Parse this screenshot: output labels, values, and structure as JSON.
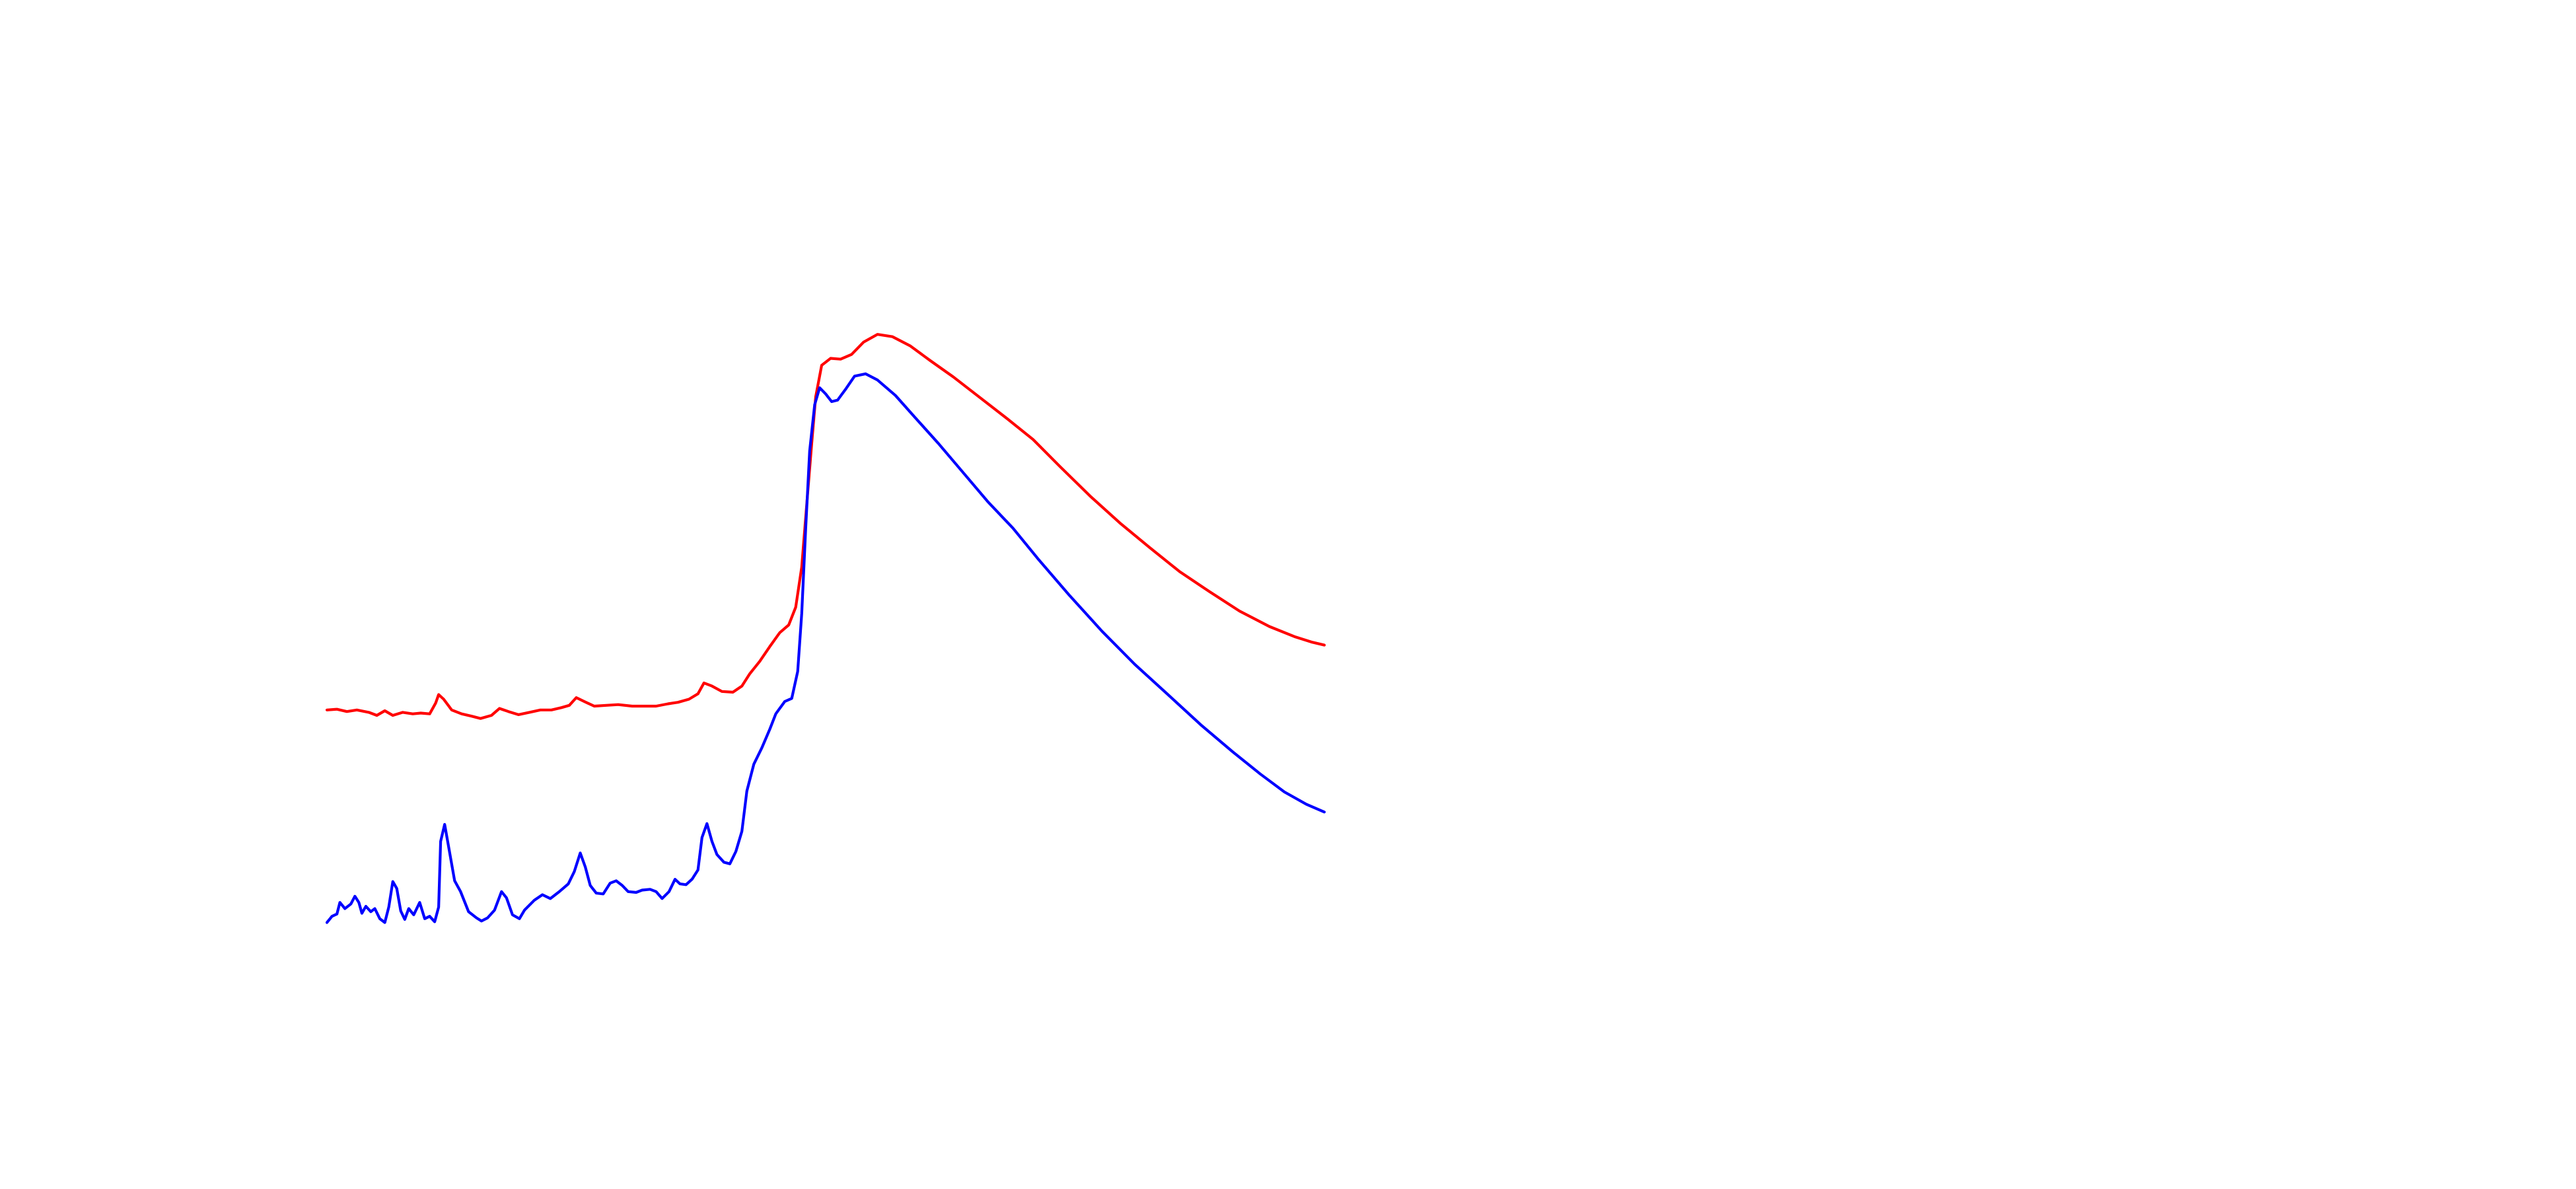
{
  "chart_data": {
    "type": "line",
    "title": "",
    "xlabel": "",
    "ylabel": "",
    "axes_visible": false,
    "grid": false,
    "legend": "none",
    "xlim": [
      0,
      100
    ],
    "ylim": [
      0,
      1
    ],
    "series": [
      {
        "color": "#ff0000",
        "points": [
          [
            0.0,
            0.295
          ],
          [
            1.0,
            0.296
          ],
          [
            2.0,
            0.293
          ],
          [
            3.0,
            0.295
          ],
          [
            4.2,
            0.292
          ],
          [
            5.0,
            0.288
          ],
          [
            5.8,
            0.294
          ],
          [
            6.6,
            0.288
          ],
          [
            7.6,
            0.292
          ],
          [
            8.6,
            0.29
          ],
          [
            9.4,
            0.291
          ],
          [
            10.3,
            0.29
          ],
          [
            10.9,
            0.304
          ],
          [
            11.2,
            0.315
          ],
          [
            11.7,
            0.309
          ],
          [
            12.5,
            0.295
          ],
          [
            13.5,
            0.29
          ],
          [
            14.5,
            0.287
          ],
          [
            15.4,
            0.284
          ],
          [
            16.5,
            0.288
          ],
          [
            17.3,
            0.297
          ],
          [
            18.2,
            0.293
          ],
          [
            19.2,
            0.289
          ],
          [
            20.3,
            0.292
          ],
          [
            21.4,
            0.295
          ],
          [
            22.5,
            0.295
          ],
          [
            23.5,
            0.298
          ],
          [
            24.3,
            0.301
          ],
          [
            25.0,
            0.311
          ],
          [
            25.8,
            0.306
          ],
          [
            26.8,
            0.3
          ],
          [
            28.0,
            0.301
          ],
          [
            29.2,
            0.302
          ],
          [
            30.6,
            0.3
          ],
          [
            31.8,
            0.3
          ],
          [
            33.0,
            0.3
          ],
          [
            34.2,
            0.303
          ],
          [
            35.2,
            0.305
          ],
          [
            36.3,
            0.309
          ],
          [
            37.2,
            0.316
          ],
          [
            37.8,
            0.33
          ],
          [
            38.6,
            0.326
          ],
          [
            39.6,
            0.319
          ],
          [
            40.7,
            0.318
          ],
          [
            41.6,
            0.326
          ],
          [
            42.4,
            0.342
          ],
          [
            43.4,
            0.358
          ],
          [
            44.4,
            0.377
          ],
          [
            45.4,
            0.395
          ],
          [
            46.3,
            0.405
          ],
          [
            47.0,
            0.428
          ],
          [
            47.6,
            0.48
          ],
          [
            48.1,
            0.56
          ],
          [
            48.6,
            0.64
          ],
          [
            49.0,
            0.7
          ],
          [
            49.6,
            0.741
          ],
          [
            50.5,
            0.75
          ],
          [
            51.5,
            0.749
          ],
          [
            52.6,
            0.755
          ],
          [
            53.8,
            0.771
          ],
          [
            55.2,
            0.781
          ],
          [
            56.7,
            0.778
          ],
          [
            58.5,
            0.766
          ],
          [
            60.5,
            0.747
          ],
          [
            62.8,
            0.726
          ],
          [
            65.4,
            0.7
          ],
          [
            68.2,
            0.672
          ],
          [
            70.8,
            0.645
          ],
          [
            73.5,
            0.61
          ],
          [
            76.5,
            0.572
          ],
          [
            79.5,
            0.537
          ],
          [
            82.5,
            0.505
          ],
          [
            85.5,
            0.474
          ],
          [
            88.5,
            0.448
          ],
          [
            91.5,
            0.423
          ],
          [
            94.5,
            0.403
          ],
          [
            97.0,
            0.39
          ],
          [
            98.7,
            0.383
          ],
          [
            100.0,
            0.379
          ]
        ]
      },
      {
        "color": "#0000ff",
        "points": [
          [
            0.0,
            0.02
          ],
          [
            0.5,
            0.028
          ],
          [
            1.0,
            0.031
          ],
          [
            1.3,
            0.046
          ],
          [
            1.8,
            0.038
          ],
          [
            2.4,
            0.044
          ],
          [
            2.8,
            0.054
          ],
          [
            3.2,
            0.046
          ],
          [
            3.5,
            0.032
          ],
          [
            3.9,
            0.041
          ],
          [
            4.4,
            0.034
          ],
          [
            4.8,
            0.038
          ],
          [
            5.3,
            0.025
          ],
          [
            5.8,
            0.02
          ],
          [
            6.2,
            0.04
          ],
          [
            6.6,
            0.073
          ],
          [
            7.0,
            0.064
          ],
          [
            7.4,
            0.035
          ],
          [
            7.8,
            0.024
          ],
          [
            8.2,
            0.038
          ],
          [
            8.7,
            0.03
          ],
          [
            9.3,
            0.046
          ],
          [
            9.8,
            0.025
          ],
          [
            10.3,
            0.028
          ],
          [
            10.8,
            0.021
          ],
          [
            11.2,
            0.04
          ],
          [
            11.4,
            0.125
          ],
          [
            11.8,
            0.147
          ],
          [
            12.2,
            0.118
          ],
          [
            12.8,
            0.074
          ],
          [
            13.4,
            0.06
          ],
          [
            14.2,
            0.034
          ],
          [
            15.0,
            0.026
          ],
          [
            15.5,
            0.022
          ],
          [
            16.1,
            0.026
          ],
          [
            16.8,
            0.036
          ],
          [
            17.5,
            0.06
          ],
          [
            18.0,
            0.052
          ],
          [
            18.6,
            0.03
          ],
          [
            19.3,
            0.025
          ],
          [
            19.8,
            0.036
          ],
          [
            20.8,
            0.049
          ],
          [
            21.6,
            0.056
          ],
          [
            22.4,
            0.051
          ],
          [
            23.3,
            0.06
          ],
          [
            24.2,
            0.07
          ],
          [
            24.8,
            0.086
          ],
          [
            25.4,
            0.11
          ],
          [
            25.9,
            0.092
          ],
          [
            26.4,
            0.068
          ],
          [
            27.0,
            0.058
          ],
          [
            27.7,
            0.057
          ],
          [
            28.4,
            0.071
          ],
          [
            29.0,
            0.074
          ],
          [
            29.6,
            0.068
          ],
          [
            30.2,
            0.06
          ],
          [
            31.0,
            0.059
          ],
          [
            31.6,
            0.062
          ],
          [
            32.4,
            0.063
          ],
          [
            33.0,
            0.06
          ],
          [
            33.6,
            0.051
          ],
          [
            34.3,
            0.06
          ],
          [
            34.9,
            0.076
          ],
          [
            35.4,
            0.07
          ],
          [
            36.0,
            0.069
          ],
          [
            36.6,
            0.076
          ],
          [
            37.2,
            0.088
          ],
          [
            37.6,
            0.13
          ],
          [
            38.1,
            0.148
          ],
          [
            38.6,
            0.125
          ],
          [
            39.1,
            0.108
          ],
          [
            39.8,
            0.098
          ],
          [
            40.4,
            0.096
          ],
          [
            41.0,
            0.112
          ],
          [
            41.6,
            0.138
          ],
          [
            42.1,
            0.19
          ],
          [
            42.8,
            0.225
          ],
          [
            43.6,
            0.246
          ],
          [
            44.4,
            0.27
          ],
          [
            45.0,
            0.29
          ],
          [
            45.9,
            0.306
          ],
          [
            46.6,
            0.31
          ],
          [
            47.2,
            0.345
          ],
          [
            47.6,
            0.42
          ],
          [
            48.0,
            0.53
          ],
          [
            48.4,
            0.63
          ],
          [
            48.9,
            0.69
          ],
          [
            49.4,
            0.712
          ],
          [
            50.0,
            0.704
          ],
          [
            50.6,
            0.694
          ],
          [
            51.2,
            0.696
          ],
          [
            52.0,
            0.71
          ],
          [
            52.9,
            0.727
          ],
          [
            54.0,
            0.73
          ],
          [
            55.2,
            0.722
          ],
          [
            57.0,
            0.702
          ],
          [
            59.0,
            0.673
          ],
          [
            61.3,
            0.64
          ],
          [
            63.8,
            0.602
          ],
          [
            66.3,
            0.564
          ],
          [
            68.8,
            0.53
          ],
          [
            71.4,
            0.489
          ],
          [
            74.4,
            0.444
          ],
          [
            77.7,
            0.397
          ],
          [
            81.0,
            0.354
          ],
          [
            84.4,
            0.314
          ],
          [
            87.6,
            0.276
          ],
          [
            90.8,
            0.241
          ],
          [
            93.6,
            0.212
          ],
          [
            96.0,
            0.189
          ],
          [
            98.2,
            0.173
          ],
          [
            100.0,
            0.163
          ]
        ]
      }
    ]
  }
}
